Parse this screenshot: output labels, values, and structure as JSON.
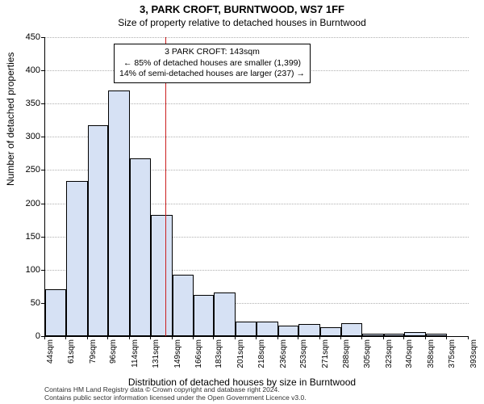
{
  "chart": {
    "type": "histogram",
    "title_line1": "3, PARK CROFT, BURNTWOOD, WS7 1FF",
    "title_line2": "Size of property relative to detached houses in Burntwood",
    "title_fontsize_1": 13,
    "title_fontsize_2": 12,
    "background_color": "#ffffff",
    "bar_fill": "#d6e1f4",
    "bar_stroke": "#000000",
    "grid_color": "#b0b0b0",
    "reference_line_color": "#cc1f1f",
    "reference_line_width": 1,
    "annotation_border": "#000000",
    "annotation_bg": "#ffffff",
    "y_axis": {
      "label": "Number of detached properties",
      "min": 0,
      "max": 450,
      "tick_step": 50,
      "ticks": [
        0,
        50,
        100,
        150,
        200,
        250,
        300,
        350,
        400,
        450
      ]
    },
    "x_axis": {
      "label": "Distribution of detached houses by size in Burntwood",
      "tick_unit": "sqm",
      "ticks": [
        44,
        61,
        79,
        96,
        114,
        131,
        149,
        166,
        183,
        201,
        218,
        236,
        253,
        271,
        288,
        305,
        323,
        340,
        358,
        375,
        393
      ]
    },
    "bars": [
      70,
      234,
      318,
      370,
      268,
      182,
      92,
      62,
      66,
      22,
      22,
      16,
      18,
      14,
      20,
      4,
      4,
      6,
      4,
      0
    ],
    "reference_value_sqm": 143,
    "annotation": {
      "line1": "3 PARK CROFT: 143sqm",
      "line2": "← 85% of detached houses are smaller (1,399)",
      "line3": "14% of semi-detached houses are larger (237) →"
    },
    "credits": {
      "line1": "Contains HM Land Registry data © Crown copyright and database right 2024.",
      "line2": "Contains public sector information licensed under the Open Government Licence v3.0."
    }
  }
}
